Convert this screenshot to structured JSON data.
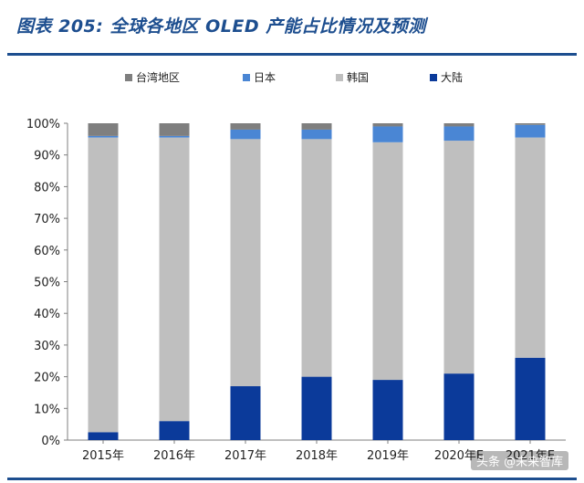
{
  "header": {
    "title": "图表 205:  全球各地区 OLED 产能占比情况及预测"
  },
  "watermark": "头条 @未来智库",
  "chart_data": {
    "type": "bar",
    "stacked": true,
    "percent": true,
    "categories": [
      "2015年",
      "2016年",
      "2017年",
      "2018年",
      "2019年",
      "2020年E",
      "2021年E"
    ],
    "series": [
      {
        "name": "大陆",
        "color": "#0b3a9a",
        "values": [
          2.5,
          6,
          17,
          20,
          19,
          21,
          26
        ]
      },
      {
        "name": "韩国",
        "color": "#bfbfbf",
        "values": [
          93,
          89.5,
          78,
          75,
          75,
          73.5,
          69.5
        ]
      },
      {
        "name": "日本",
        "color": "#4a86d4",
        "values": [
          0.5,
          0.5,
          3,
          3,
          5,
          4.5,
          4
        ]
      },
      {
        "name": "台湾地区",
        "color": "#7f7f7f",
        "values": [
          4,
          4,
          2,
          2,
          1,
          1,
          0.5
        ]
      }
    ],
    "legend_order": [
      "台湾地区",
      "日本",
      "韩国",
      "大陆"
    ],
    "ylim": [
      0,
      100
    ],
    "yticks": [
      "0%",
      "10%",
      "20%",
      "30%",
      "40%",
      "50%",
      "60%",
      "70%",
      "80%",
      "90%",
      "100%"
    ],
    "legend_position": "top",
    "grid": false
  }
}
